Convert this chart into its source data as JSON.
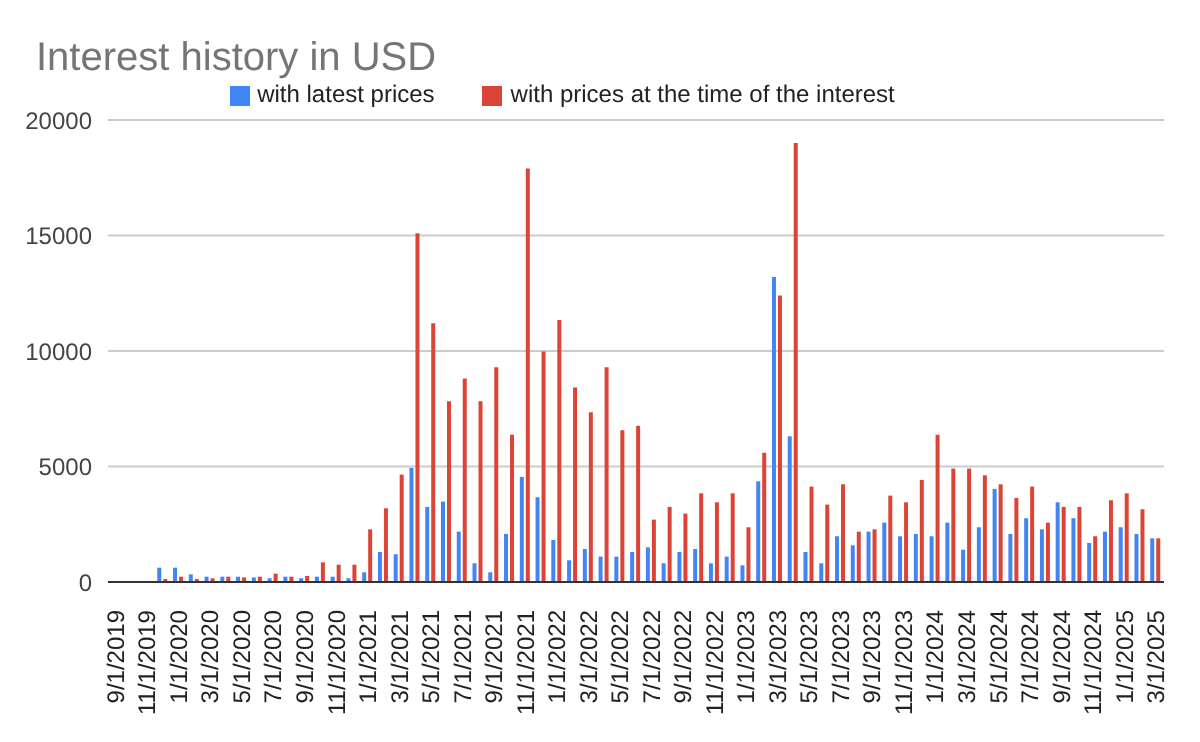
{
  "chart_data": {
    "type": "bar",
    "title": "Interest history in USD",
    "categories": [
      "9/1/2019",
      null,
      "11/1/2019",
      null,
      "1/1/2020",
      null,
      "3/1/2020",
      null,
      "5/1/2020",
      null,
      "7/1/2020",
      null,
      "9/1/2020",
      null,
      "11/1/2020",
      null,
      "1/1/2021",
      null,
      "3/1/2021",
      null,
      "5/1/2021",
      null,
      "7/1/2021",
      null,
      "9/1/2021",
      null,
      "11/1/2021",
      null,
      "1/1/2022",
      null,
      "3/1/2022",
      null,
      "5/1/2022",
      null,
      "7/1/2022",
      null,
      "9/1/2022",
      null,
      "11/1/2022",
      null,
      "1/1/2023",
      null,
      "3/1/2023",
      null,
      "5/1/2023",
      null,
      "7/1/2023",
      null,
      "9/1/2023",
      null,
      "11/1/2023",
      null,
      "1/1/2024",
      null,
      "3/1/2024",
      null,
      "5/1/2024",
      null,
      "7/1/2024",
      null,
      "9/1/2024",
      null,
      "11/1/2024",
      null,
      "1/1/2025",
      null,
      "3/1/2025"
    ],
    "series": [
      {
        "name": "with latest prices",
        "color": "#4285f4",
        "values": [
          0,
          0,
          0,
          620,
          620,
          330,
          230,
          230,
          230,
          200,
          160,
          230,
          160,
          230,
          230,
          160,
          420,
          1300,
          1200,
          4940,
          3250,
          3480,
          2180,
          810,
          420,
          2080,
          4550,
          3670,
          1820,
          940,
          1430,
          1100,
          1100,
          1300,
          1500,
          810,
          1300,
          1430,
          810,
          1100,
          720,
          4360,
          13200,
          6310,
          1300,
          810,
          1980,
          1590,
          2180,
          2570,
          1980,
          2080,
          1980,
          2570,
          1400,
          2370,
          4030,
          2080,
          2760,
          2280,
          3450,
          2760,
          1690,
          2180,
          2370,
          2080,
          1890
        ]
      },
      {
        "name": "with prices at the time of the interest",
        "color": "#db4437",
        "values": [
          0,
          0,
          0,
          130,
          230,
          130,
          160,
          230,
          200,
          230,
          360,
          230,
          260,
          850,
          750,
          750,
          2280,
          3190,
          4650,
          15100,
          11200,
          7830,
          8810,
          7830,
          9300,
          6370,
          17900,
          9980,
          11340,
          8420,
          7350,
          9300,
          6570,
          6760,
          2700,
          3250,
          2960,
          3840,
          3450,
          3840,
          2370,
          5590,
          12400,
          19000,
          4130,
          3350,
          4230,
          2180,
          2280,
          3740,
          3450,
          4420,
          6370,
          4910,
          4910,
          4620,
          4230,
          3640,
          4130,
          2570,
          3250,
          3250,
          1980,
          3540,
          3840,
          3150,
          1890
        ]
      }
    ],
    "ylim": [
      0,
      20000
    ],
    "yticks": [
      0,
      5000,
      10000,
      15000,
      20000
    ],
    "grid": "y",
    "legend": "top"
  }
}
